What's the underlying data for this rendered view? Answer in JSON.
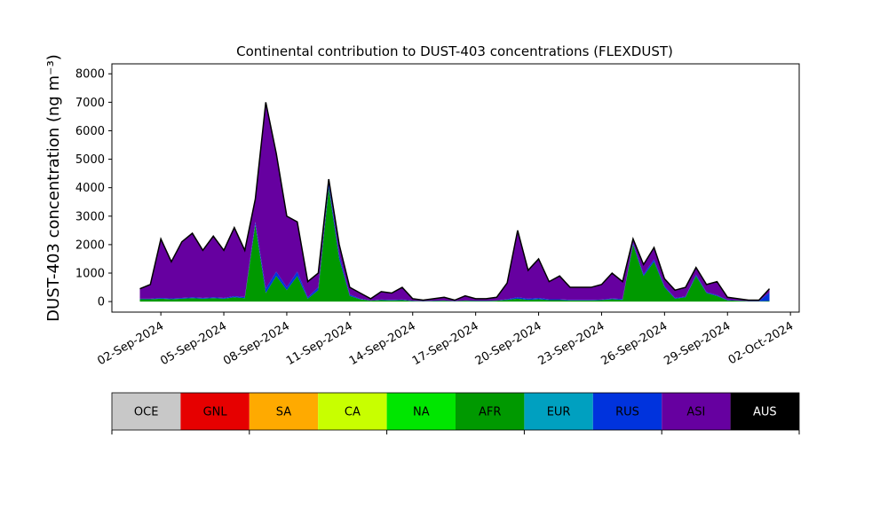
{
  "chart_data": {
    "type": "stacked_area",
    "title": "Continental contribution to DUST-403 concentrations (FLEXDUST)",
    "ylabel": "DUST-403 concentration (ng m⁻³)",
    "x": [
      "2024-09-01T00:00",
      "2024-09-01T12:00",
      "2024-09-02T00:00",
      "2024-09-02T12:00",
      "2024-09-03T00:00",
      "2024-09-03T12:00",
      "2024-09-04T00:00",
      "2024-09-04T12:00",
      "2024-09-05T00:00",
      "2024-09-05T12:00",
      "2024-09-06T00:00",
      "2024-09-06T12:00",
      "2024-09-07T00:00",
      "2024-09-07T12:00",
      "2024-09-08T00:00",
      "2024-09-08T12:00",
      "2024-09-09T00:00",
      "2024-09-09T12:00",
      "2024-09-10T00:00",
      "2024-09-10T12:00",
      "2024-09-11T00:00",
      "2024-09-11T12:00",
      "2024-09-12T00:00",
      "2024-09-12T12:00",
      "2024-09-13T00:00",
      "2024-09-13T12:00",
      "2024-09-14T00:00",
      "2024-09-14T12:00",
      "2024-09-15T00:00",
      "2024-09-15T12:00",
      "2024-09-16T00:00",
      "2024-09-16T12:00",
      "2024-09-17T00:00",
      "2024-09-17T12:00",
      "2024-09-18T00:00",
      "2024-09-18T12:00",
      "2024-09-19T00:00",
      "2024-09-19T12:00",
      "2024-09-20T00:00",
      "2024-09-20T12:00",
      "2024-09-21T00:00",
      "2024-09-21T12:00",
      "2024-09-22T00:00",
      "2024-09-22T12:00",
      "2024-09-23T00:00",
      "2024-09-23T12:00",
      "2024-09-24T00:00",
      "2024-09-24T12:00",
      "2024-09-25T00:00",
      "2024-09-25T12:00",
      "2024-09-26T00:00",
      "2024-09-26T12:00",
      "2024-09-27T00:00",
      "2024-09-27T12:00",
      "2024-09-28T00:00",
      "2024-09-28T12:00",
      "2024-09-29T00:00",
      "2024-09-29T12:00",
      "2024-09-30T00:00",
      "2024-09-30T12:00",
      "2024-10-01T00:00"
    ],
    "series": [
      {
        "name": "OCE",
        "color": "#c8c8c8",
        "values": [
          0,
          0,
          0,
          0,
          0,
          0,
          0,
          0,
          0,
          0,
          0,
          0,
          0,
          0,
          0,
          0,
          0,
          0,
          0,
          0,
          0,
          0,
          0,
          0,
          0,
          0,
          0,
          0,
          0,
          0,
          0,
          0,
          0,
          0,
          0,
          0,
          0,
          0,
          0,
          0,
          0,
          0,
          0,
          0,
          0,
          0,
          0,
          0,
          0,
          0,
          0,
          0,
          0,
          0,
          0,
          0,
          0,
          0,
          0,
          0,
          0
        ]
      },
      {
        "name": "GNL",
        "color": "#e60000",
        "values": [
          0,
          0,
          0,
          0,
          0,
          0,
          0,
          0,
          0,
          0,
          0,
          0,
          0,
          0,
          0,
          0,
          0,
          0,
          0,
          0,
          0,
          0,
          0,
          0,
          0,
          0,
          0,
          0,
          0,
          0,
          0,
          0,
          0,
          0,
          0,
          0,
          0,
          0,
          0,
          0,
          0,
          0,
          0,
          0,
          0,
          0,
          0,
          0,
          0,
          0,
          0,
          0,
          0,
          0,
          0,
          0,
          0,
          0,
          0,
          0,
          0
        ]
      },
      {
        "name": "SA",
        "color": "#ffaa00",
        "values": [
          0,
          0,
          0,
          0,
          0,
          0,
          0,
          0,
          0,
          0,
          0,
          0,
          0,
          0,
          0,
          0,
          0,
          0,
          0,
          0,
          0,
          0,
          0,
          0,
          0,
          0,
          0,
          0,
          0,
          0,
          0,
          0,
          0,
          0,
          0,
          0,
          0,
          0,
          0,
          0,
          0,
          0,
          0,
          0,
          0,
          0,
          0,
          0,
          0,
          0,
          0,
          0,
          0,
          0,
          0,
          0,
          0,
          0,
          0,
          0,
          0
        ]
      },
      {
        "name": "CA",
        "color": "#c8ff00",
        "values": [
          0,
          0,
          0,
          0,
          0,
          0,
          0,
          0,
          0,
          0,
          0,
          0,
          0,
          0,
          0,
          0,
          0,
          0,
          0,
          0,
          0,
          0,
          0,
          0,
          0,
          0,
          0,
          0,
          0,
          0,
          0,
          0,
          0,
          0,
          0,
          0,
          0,
          0,
          0,
          0,
          0,
          0,
          0,
          0,
          0,
          0,
          0,
          0,
          0,
          0,
          0,
          0,
          0,
          0,
          0,
          0,
          0,
          0,
          0,
          0,
          0
        ]
      },
      {
        "name": "NA",
        "color": "#00e600",
        "values": [
          0,
          0,
          0,
          0,
          0,
          0,
          0,
          0,
          0,
          0,
          0,
          0,
          0,
          0,
          0,
          0,
          0,
          0,
          0,
          0,
          0,
          0,
          0,
          0,
          0,
          0,
          0,
          0,
          0,
          0,
          0,
          0,
          0,
          0,
          0,
          0,
          0,
          0,
          0,
          0,
          0,
          0,
          0,
          0,
          0,
          0,
          0,
          0,
          0,
          0,
          0,
          0,
          0,
          0,
          0,
          0,
          0,
          0,
          0,
          0,
          0
        ]
      },
      {
        "name": "AFR",
        "color": "#009900",
        "values": [
          80,
          80,
          100,
          80,
          100,
          120,
          100,
          120,
          100,
          150,
          120,
          2700,
          300,
          900,
          400,
          900,
          100,
          400,
          4000,
          1500,
          200,
          80,
          30,
          50,
          40,
          50,
          20,
          10,
          20,
          30,
          10,
          30,
          20,
          20,
          30,
          60,
          100,
          60,
          80,
          50,
          50,
          40,
          40,
          40,
          50,
          80,
          60,
          2000,
          900,
          1400,
          500,
          100,
          150,
          900,
          300,
          200,
          40,
          30,
          10,
          10,
          20
        ]
      },
      {
        "name": "EUR",
        "color": "#00a0c0",
        "values": [
          0,
          0,
          0,
          0,
          0,
          0,
          0,
          0,
          0,
          0,
          0,
          0,
          0,
          0,
          0,
          0,
          0,
          0,
          0,
          0,
          0,
          0,
          0,
          0,
          0,
          0,
          0,
          0,
          0,
          0,
          0,
          0,
          0,
          0,
          0,
          0,
          0,
          0,
          0,
          0,
          0,
          0,
          0,
          0,
          0,
          0,
          0,
          0,
          0,
          0,
          0,
          0,
          0,
          0,
          0,
          0,
          0,
          0,
          0,
          0,
          0
        ]
      },
      {
        "name": "RUS",
        "color": "#0033dd",
        "values": [
          20,
          20,
          30,
          30,
          30,
          30,
          30,
          30,
          30,
          40,
          40,
          100,
          150,
          150,
          100,
          150,
          50,
          100,
          150,
          150,
          50,
          20,
          10,
          20,
          20,
          20,
          10,
          10,
          10,
          10,
          10,
          10,
          10,
          10,
          10,
          20,
          50,
          40,
          50,
          30,
          30,
          20,
          20,
          20,
          20,
          30,
          30,
          60,
          60,
          80,
          50,
          30,
          30,
          50,
          30,
          30,
          20,
          10,
          10,
          10,
          300
        ]
      },
      {
        "name": "ASI",
        "color": "#6600a0",
        "values": [
          350,
          500,
          2070,
          1290,
          1970,
          2250,
          1670,
          2150,
          1670,
          2410,
          1640,
          800,
          6550,
          4150,
          2500,
          1750,
          550,
          500,
          150,
          350,
          250,
          200,
          60,
          280,
          240,
          430,
          70,
          30,
          70,
          110,
          30,
          160,
          70,
          70,
          110,
          570,
          2350,
          1000,
          1370,
          620,
          820,
          440,
          440,
          440,
          530,
          890,
          610,
          140,
          340,
          420,
          250,
          270,
          320,
          250,
          270,
          470,
          90,
          60,
          30,
          30,
          130
        ]
      },
      {
        "name": "AUS",
        "color": "#000000",
        "values": [
          0,
          0,
          0,
          0,
          0,
          0,
          0,
          0,
          0,
          0,
          0,
          0,
          0,
          0,
          0,
          0,
          0,
          0,
          0,
          0,
          0,
          0,
          0,
          0,
          0,
          0,
          0,
          0,
          0,
          0,
          0,
          0,
          0,
          0,
          0,
          0,
          0,
          0,
          0,
          0,
          0,
          0,
          0,
          0,
          0,
          0,
          0,
          0,
          0,
          0,
          0,
          0,
          0,
          0,
          0,
          0,
          0,
          0,
          0,
          0,
          0
        ]
      }
    ],
    "xlim": [
      "2024-08-30T16:00",
      "2024-10-02T10:00"
    ],
    "xticks": [
      {
        "value": "2024-09-02T00:00",
        "label": "02-Sep-2024"
      },
      {
        "value": "2024-09-05T00:00",
        "label": "05-Sep-2024"
      },
      {
        "value": "2024-09-08T00:00",
        "label": "08-Sep-2024"
      },
      {
        "value": "2024-09-11T00:00",
        "label": "11-Sep-2024"
      },
      {
        "value": "2024-09-14T00:00",
        "label": "14-Sep-2024"
      },
      {
        "value": "2024-09-17T00:00",
        "label": "17-Sep-2024"
      },
      {
        "value": "2024-09-20T00:00",
        "label": "20-Sep-2024"
      },
      {
        "value": "2024-09-23T00:00",
        "label": "23-Sep-2024"
      },
      {
        "value": "2024-09-26T00:00",
        "label": "26-Sep-2024"
      },
      {
        "value": "2024-09-29T00:00",
        "label": "29-Sep-2024"
      },
      {
        "value": "2024-10-02T00:00",
        "label": "02-Oct-2024"
      }
    ],
    "ylim": [
      -370,
      8350
    ],
    "yticks": [
      0,
      1000,
      2000,
      3000,
      4000,
      5000,
      6000,
      7000,
      8000
    ],
    "legend": "below"
  }
}
